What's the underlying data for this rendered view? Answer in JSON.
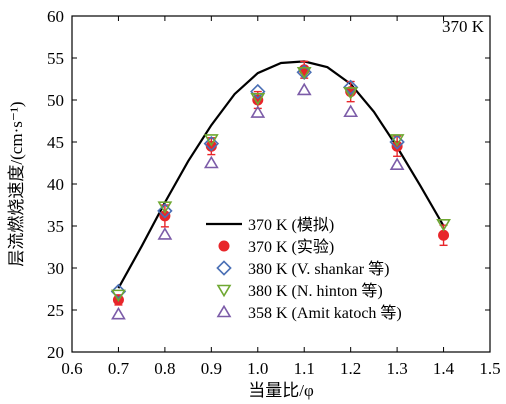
{
  "chart_data": {
    "type": "scatter",
    "title": "",
    "xlabel": "当量比/φ",
    "ylabel": "层流燃烧速度/(cm·s⁻¹)",
    "xlim": [
      0.6,
      1.5
    ],
    "ylim": [
      20,
      60
    ],
    "x_ticks": [
      "0.6",
      "0.7",
      "0.8",
      "0.9",
      "1.0",
      "1.1",
      "1.2",
      "1.3",
      "1.4",
      "1.5"
    ],
    "y_ticks": [
      "20",
      "25",
      "30",
      "35",
      "40",
      "45",
      "50",
      "55",
      "60"
    ],
    "annotation": "370 K",
    "grid": false,
    "legend_position": "center-right",
    "series": [
      {
        "name": "370 K (模拟)",
        "kind": "line",
        "color": "#000000",
        "x": [
          0.7,
          0.75,
          0.8,
          0.85,
          0.9,
          0.95,
          1.0,
          1.05,
          1.1,
          1.15,
          1.2,
          1.25,
          1.3,
          1.35,
          1.4
        ],
        "y": [
          27.6,
          32.6,
          37.8,
          42.7,
          47.0,
          50.7,
          53.2,
          54.4,
          54.6,
          53.9,
          51.9,
          48.6,
          44.4,
          39.8,
          35.0
        ]
      },
      {
        "name": "370 K (实验)",
        "kind": "marker",
        "marker": "circle",
        "color": "#e8262a",
        "x": [
          0.7,
          0.8,
          0.9,
          1.0,
          1.1,
          1.2,
          1.3,
          1.4
        ],
        "y": [
          26.2,
          36.2,
          44.5,
          50.0,
          53.6,
          51.0,
          44.5,
          33.9
        ],
        "err": [
          0.6,
          1.3,
          1.0,
          1.0,
          1.0,
          1.2,
          1.2,
          1.2
        ]
      },
      {
        "name": "380 K (V. shankar 等)",
        "kind": "marker",
        "marker": "diamond",
        "color": "#4a6fb5",
        "x": [
          0.7,
          0.8,
          0.9,
          1.0,
          1.1,
          1.2,
          1.3
        ],
        "y": [
          27.2,
          36.8,
          44.8,
          51.0,
          53.3,
          51.5,
          45.0
        ]
      },
      {
        "name": "380 K (N. hinton 等)",
        "kind": "marker",
        "marker": "triangle-down",
        "color": "#6fa832",
        "x": [
          0.7,
          0.8,
          0.9,
          1.0,
          1.1,
          1.2,
          1.3,
          1.4
        ],
        "y": [
          26.8,
          37.3,
          45.3,
          50.2,
          53.3,
          50.9,
          45.3,
          35.2
        ]
      },
      {
        "name": "358 K (Amit katoch 等)",
        "kind": "marker",
        "marker": "triangle-up",
        "color": "#7c5ca8",
        "x": [
          0.7,
          0.8,
          0.9,
          1.0,
          1.1,
          1.2,
          1.3
        ],
        "y": [
          24.5,
          34.0,
          42.5,
          48.5,
          51.2,
          48.6,
          42.3
        ]
      }
    ]
  }
}
